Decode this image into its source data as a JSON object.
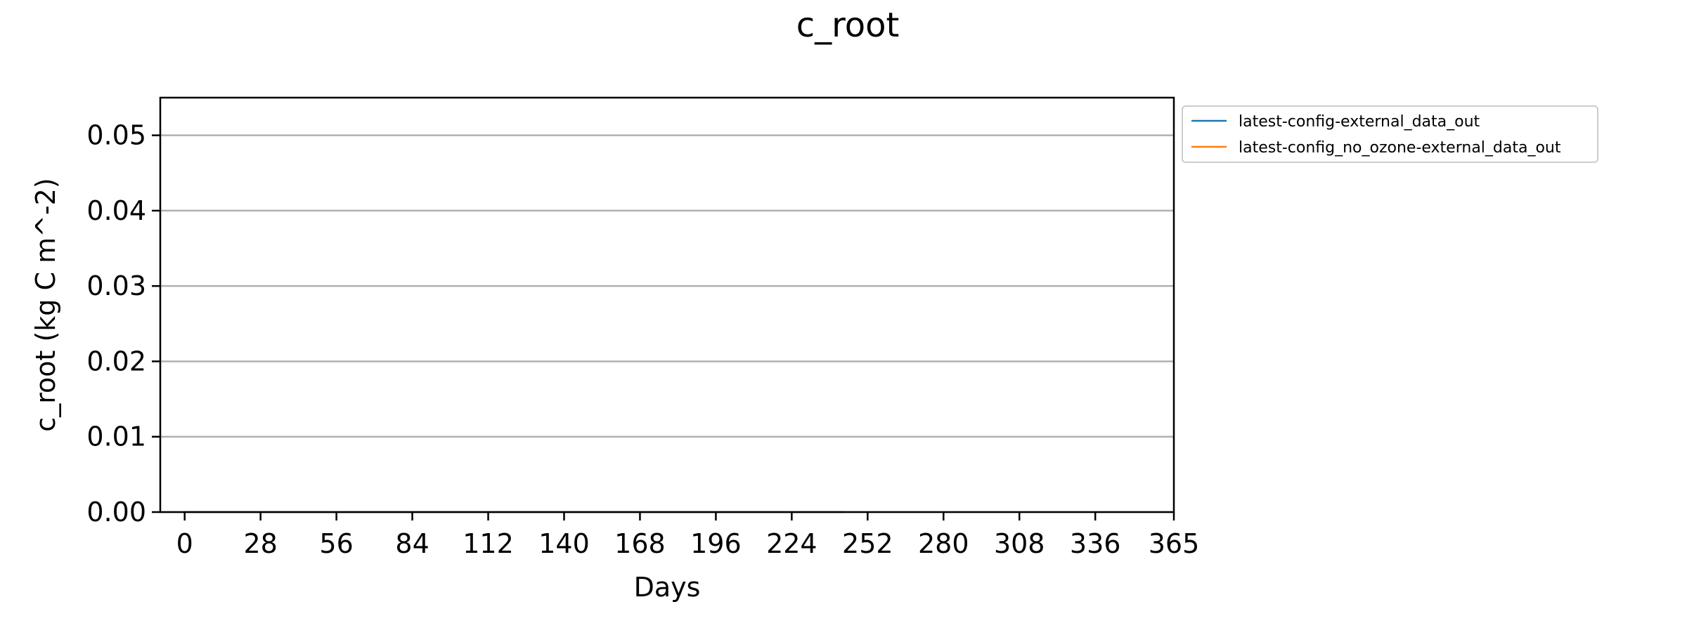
{
  "chart_data": {
    "type": "line",
    "title": "c_root",
    "xlabel": "Days",
    "ylabel": "c_root (kg C m^-2)",
    "xlim": [
      -9,
      365
    ],
    "ylim": [
      0,
      0.055
    ],
    "xticks": [
      0,
      28,
      56,
      84,
      112,
      140,
      168,
      196,
      224,
      252,
      280,
      308,
      336,
      365
    ],
    "xtick_labels": [
      "0",
      "28",
      "56",
      "84",
      "112",
      "140",
      "168",
      "196",
      "224",
      "252",
      "280",
      "308",
      "336",
      "365"
    ],
    "yticks": [
      0,
      0.01,
      0.02,
      0.03,
      0.04,
      0.05
    ],
    "ytick_labels": [
      "0.00",
      "0.01",
      "0.02",
      "0.03",
      "0.04",
      "0.05"
    ],
    "grid": "y",
    "legend_position": "outside-right-top",
    "series": [
      {
        "name": "latest-config-external_data_out",
        "color": "#1f77b4",
        "x": [
          0,
          243
        ],
        "y": [
          0,
          0
        ]
      },
      {
        "name": "latest-config_no_ozone-external_data_out",
        "color": "#ff7f0e",
        "x": [
          0,
          243
        ],
        "y": [
          0,
          0
        ]
      }
    ]
  }
}
